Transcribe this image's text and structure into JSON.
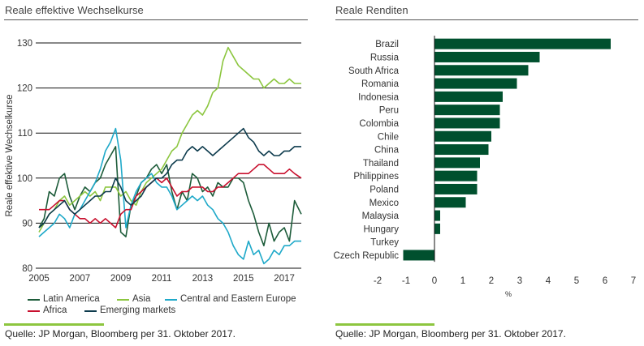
{
  "left_panel": {
    "title": "Reale effektive Wechselkurse",
    "source": "Quelle: JP Morgan, Bloomberg per 31. Oktober 2017."
  },
  "right_panel": {
    "title": "Reale Renditen",
    "source": "Quelle: JP Morgan, Bloomberg per 31. Oktober 2017."
  },
  "chart_data": [
    {
      "type": "line",
      "title": "Reale effektive Wechselkurse",
      "xlabel": "",
      "ylabel": "Reale effektive Wechselkurse",
      "xlim": [
        2005,
        2017.83
      ],
      "ylim": [
        80,
        130
      ],
      "xticks": [
        "2005",
        "2007",
        "2009",
        "2011",
        "2013",
        "2015",
        "2017"
      ],
      "yticks": [
        "80",
        "90",
        "100",
        "110",
        "120",
        "130"
      ],
      "grid": "horizontal",
      "legend": "bottom",
      "x": [
        2005.0,
        2005.25,
        2005.5,
        2005.75,
        2006.0,
        2006.25,
        2006.5,
        2006.75,
        2007.0,
        2007.25,
        2007.5,
        2007.75,
        2008.0,
        2008.25,
        2008.5,
        2008.75,
        2009.0,
        2009.25,
        2009.5,
        2009.75,
        2010.0,
        2010.25,
        2010.5,
        2010.75,
        2011.0,
        2011.25,
        2011.5,
        2011.75,
        2012.0,
        2012.25,
        2012.5,
        2012.75,
        2013.0,
        2013.25,
        2013.5,
        2013.75,
        2014.0,
        2014.25,
        2014.5,
        2014.75,
        2015.0,
        2015.25,
        2015.5,
        2015.75,
        2016.0,
        2016.25,
        2016.5,
        2016.75,
        2017.0,
        2017.25,
        2017.5,
        2017.83
      ],
      "series": [
        {
          "name": "Latin America",
          "color": "#1d5c3a",
          "values": [
            89,
            91,
            97,
            96,
            100,
            101,
            96,
            93,
            96,
            98,
            97,
            99,
            100,
            103,
            105,
            107,
            88,
            87,
            94,
            96,
            99,
            100,
            102,
            103,
            101,
            103,
            97,
            93,
            97,
            95,
            101,
            100,
            97,
            98,
            96,
            99,
            98,
            98,
            100,
            100,
            99,
            95,
            92,
            88,
            85,
            90,
            86,
            88,
            89,
            86,
            95,
            92
          ]
        },
        {
          "name": "Asia",
          "color": "#8cc63f",
          "values": [
            88,
            90,
            92,
            93,
            95,
            96,
            94,
            95,
            96,
            97,
            96,
            97,
            95,
            98,
            98,
            98,
            96,
            97,
            95,
            94,
            97,
            99,
            100,
            101,
            102,
            104,
            106,
            107,
            110,
            112,
            114,
            115,
            114,
            116,
            119,
            120,
            126,
            129,
            127,
            125,
            124,
            123,
            122,
            122,
            120,
            121,
            122,
            121,
            121,
            122,
            121,
            121
          ]
        },
        {
          "name": "Central and Eastern Europe",
          "color": "#1fa9c9",
          "values": [
            87,
            88,
            89,
            90,
            92,
            91,
            89,
            92,
            93,
            95,
            97,
            99,
            102,
            106,
            108,
            111,
            104,
            89,
            94,
            97,
            99,
            100,
            101,
            99,
            98,
            98,
            96,
            93,
            94,
            95,
            96,
            95,
            96,
            94,
            93,
            91,
            90,
            88,
            85,
            83,
            82,
            86,
            83,
            84,
            81,
            82,
            84,
            83,
            85,
            85,
            86,
            86
          ]
        },
        {
          "name": "Africa",
          "color": "#c8102e",
          "values": [
            93,
            93,
            93,
            94,
            95,
            95,
            93,
            92,
            91,
            91,
            90,
            91,
            90,
            91,
            90,
            89,
            92,
            93,
            93,
            96,
            97,
            98,
            99,
            100,
            99,
            100,
            98,
            96,
            97,
            97,
            98,
            98,
            98,
            97,
            97,
            98,
            98,
            99,
            100,
            101,
            101,
            101,
            102,
            103,
            103,
            102,
            101,
            101,
            101,
            102,
            101,
            100
          ]
        },
        {
          "name": "Emerging markets",
          "color": "#0d3b4d",
          "values": [
            89,
            90,
            92,
            93,
            94,
            95,
            93,
            92,
            93,
            94,
            95,
            96,
            96,
            97,
            97,
            100,
            98,
            95,
            94,
            95,
            96,
            98,
            99,
            100,
            100,
            101,
            103,
            104,
            104,
            106,
            107,
            106,
            107,
            106,
            105,
            106,
            107,
            108,
            109,
            110,
            111,
            109,
            108,
            106,
            105,
            106,
            105,
            105,
            106,
            106,
            107,
            107
          ]
        }
      ]
    },
    {
      "type": "bar",
      "orientation": "horizontal",
      "title": "Reale Renditen",
      "xlabel": "%",
      "xlim": [
        -2,
        7
      ],
      "xticks": [
        "-2",
        "-1",
        "0",
        "1",
        "2",
        "3",
        "4",
        "5",
        "6",
        "7"
      ],
      "grid": "none",
      "color": "#00502e",
      "categories": [
        "Brazil",
        "Russia",
        "South Africa",
        "Romania",
        "Indonesia",
        "Peru",
        "Colombia",
        "Chile",
        "China",
        "Thailand",
        "Philippines",
        "Poland",
        "Mexico",
        "Malaysia",
        "Hungary",
        "Turkey",
        "Czech Republic"
      ],
      "values": [
        6.2,
        3.7,
        3.3,
        2.9,
        2.4,
        2.3,
        2.3,
        2.0,
        1.9,
        1.6,
        1.5,
        1.5,
        1.1,
        0.2,
        0.2,
        0.0,
        -1.1
      ]
    }
  ]
}
